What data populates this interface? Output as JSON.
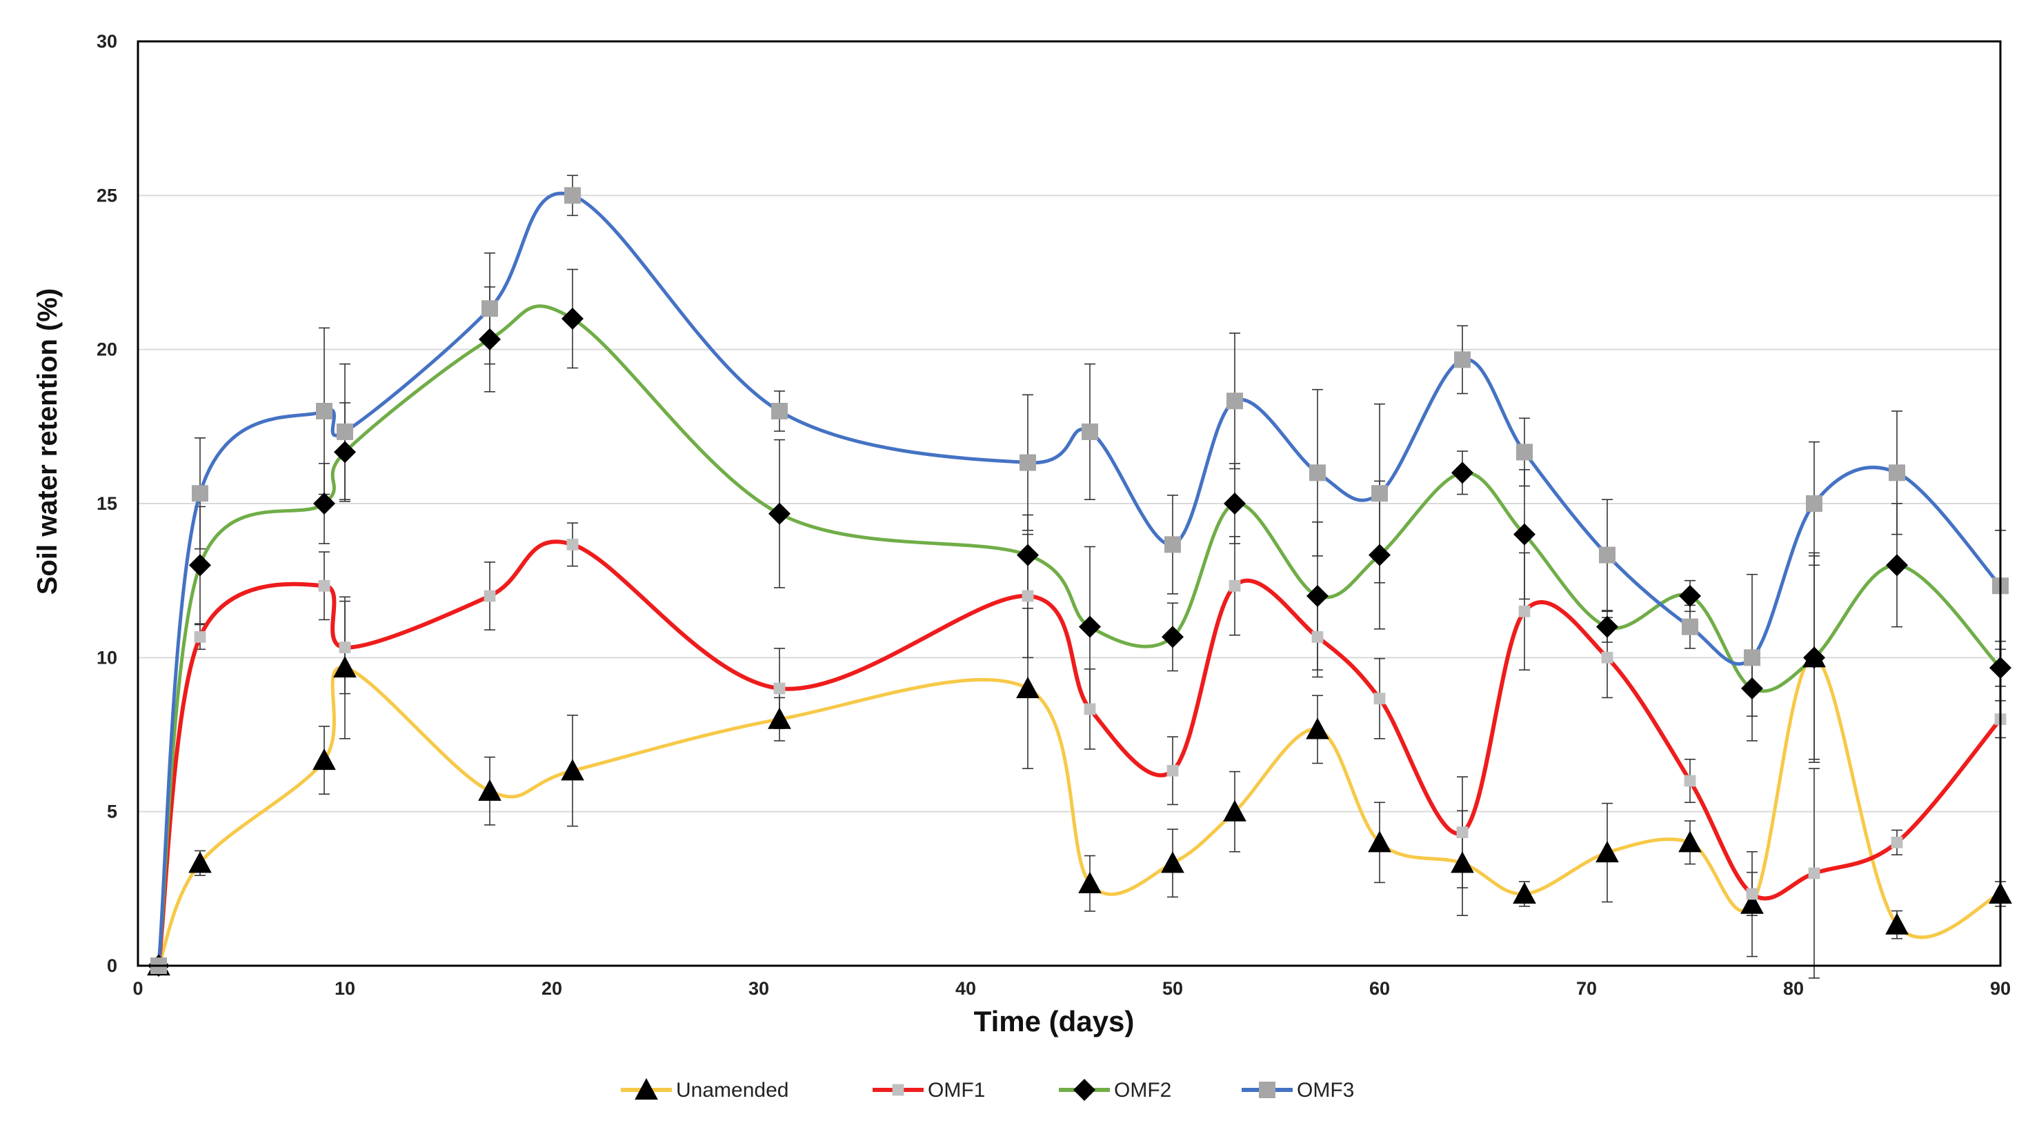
{
  "chart_data": {
    "type": "line",
    "xlabel": "Time (days)",
    "ylabel": "Soil water retention (%)",
    "xlim": [
      0,
      90
    ],
    "ylim": [
      0,
      30
    ],
    "xticks": [
      0,
      10,
      20,
      30,
      40,
      50,
      60,
      70,
      80,
      90
    ],
    "yticks": [
      0,
      5,
      10,
      15,
      20,
      25,
      30
    ],
    "grid": "horizontal",
    "legend_position": "bottom",
    "x": [
      1,
      3,
      9,
      10,
      17,
      21,
      31,
      43,
      46,
      50,
      53,
      57,
      60,
      64,
      67,
      71,
      75,
      78,
      81,
      85,
      90
    ],
    "series": [
      {
        "name": "Unamended",
        "color": "#f7c948",
        "marker": "triangle",
        "marker_color": "#000000",
        "values": [
          0,
          3.33,
          6.67,
          9.67,
          5.67,
          6.33,
          8.0,
          9.0,
          2.67,
          3.33,
          5.0,
          7.67,
          4.0,
          3.33,
          2.33,
          3.67,
          4.0,
          2.0,
          10.0,
          1.33,
          2.33
        ],
        "errors": [
          0,
          0.4,
          1.1,
          2.3,
          1.1,
          1.8,
          0.7,
          2.6,
          0.9,
          1.1,
          1.3,
          1.1,
          1.3,
          1.7,
          0.4,
          1.6,
          0.7,
          1.7,
          3.4,
          0.45,
          0.4
        ]
      },
      {
        "name": "OMF1",
        "color": "#ee1c1c",
        "marker": "square",
        "marker_color": "#c0c0c0",
        "values": [
          0,
          10.67,
          12.33,
          10.33,
          12.0,
          13.67,
          9.0,
          12.0,
          8.33,
          6.33,
          12.33,
          10.67,
          8.67,
          4.33,
          11.5,
          10.0,
          6.0,
          2.33,
          3.0,
          4.0,
          8.0
        ],
        "errors": [
          0,
          0.4,
          1.1,
          1.5,
          1.1,
          0.7,
          1.3,
          2.0,
          1.3,
          1.1,
          1.6,
          1.3,
          1.3,
          1.8,
          1.9,
          1.3,
          0.7,
          0.7,
          3.4,
          0.4,
          0.6
        ]
      },
      {
        "name": "OMF2",
        "color": "#70ad47",
        "marker": "diamond",
        "marker_color": "#000000",
        "values": [
          0,
          13.0,
          15.0,
          16.67,
          20.33,
          21.0,
          14.67,
          13.33,
          11.0,
          10.67,
          15.0,
          12.0,
          13.33,
          16.0,
          14.0,
          11.0,
          12.0,
          9.0,
          10.0,
          13.0,
          9.67
        ],
        "errors": [
          0,
          1.9,
          1.3,
          1.6,
          1.7,
          1.6,
          2.4,
          1.3,
          2.6,
          1.1,
          1.3,
          2.4,
          2.4,
          0.7,
          2.1,
          0.5,
          0.5,
          0.9,
          3.3,
          2.0,
          0.6
        ]
      },
      {
        "name": "OMF3",
        "color": "#4472c4",
        "marker": "square",
        "marker_color": "#a6a6a6",
        "values": [
          0,
          15.33,
          18.0,
          17.33,
          21.33,
          25.0,
          18.0,
          16.33,
          17.33,
          13.67,
          18.33,
          16.0,
          15.33,
          19.67,
          16.67,
          13.33,
          11.0,
          10.0,
          15.0,
          16.0,
          12.33
        ],
        "errors": [
          0,
          1.8,
          2.7,
          2.2,
          1.8,
          0.65,
          0.65,
          2.2,
          2.2,
          1.6,
          2.2,
          2.7,
          2.9,
          1.1,
          1.1,
          1.8,
          0.7,
          2.7,
          2.0,
          2.0,
          1.8
        ]
      }
    ]
  }
}
